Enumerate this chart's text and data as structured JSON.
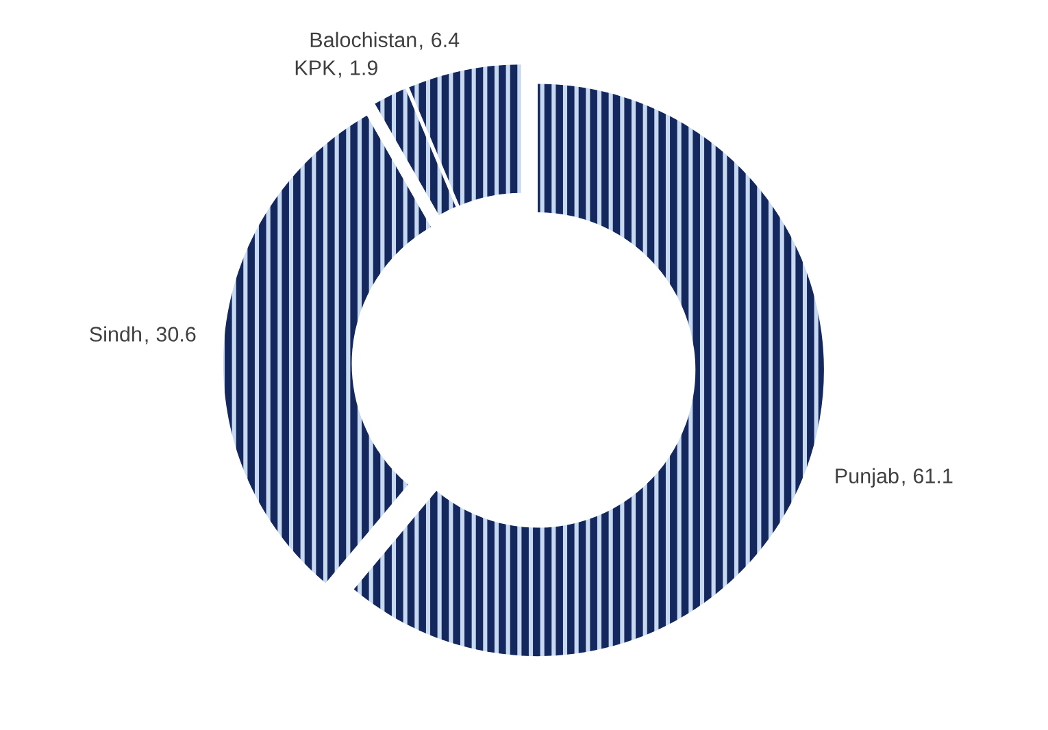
{
  "chart_data": {
    "type": "donut",
    "categories": [
      "Punjab",
      "Sindh",
      "KPK",
      "Balochistan"
    ],
    "values": [
      61.1,
      30.6,
      1.9,
      6.4
    ],
    "colors": [
      "#14285e",
      "#14285e",
      "#14285e",
      "#14285e"
    ],
    "data_labels": true,
    "legend": false
  }
}
